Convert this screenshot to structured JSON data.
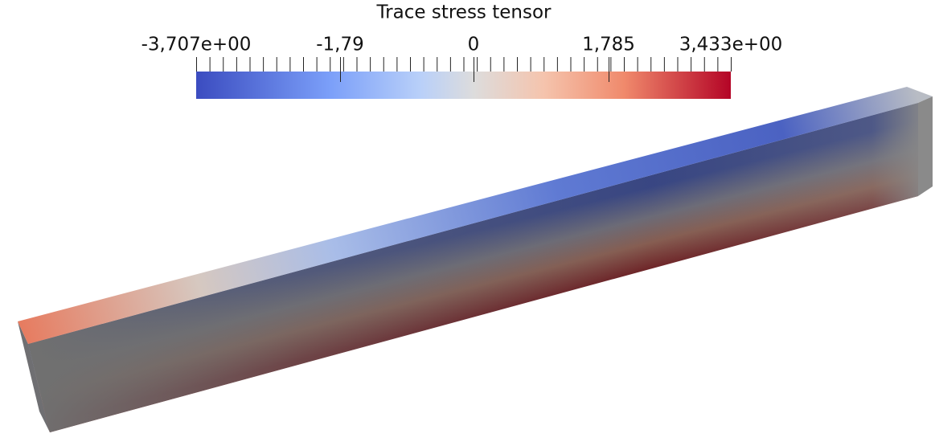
{
  "colorbar": {
    "title": "Trace stress tensor",
    "labels": [
      "-3,707e+00",
      "-1,79",
      "0",
      "1,785",
      "3,433e+00"
    ]
  }
}
